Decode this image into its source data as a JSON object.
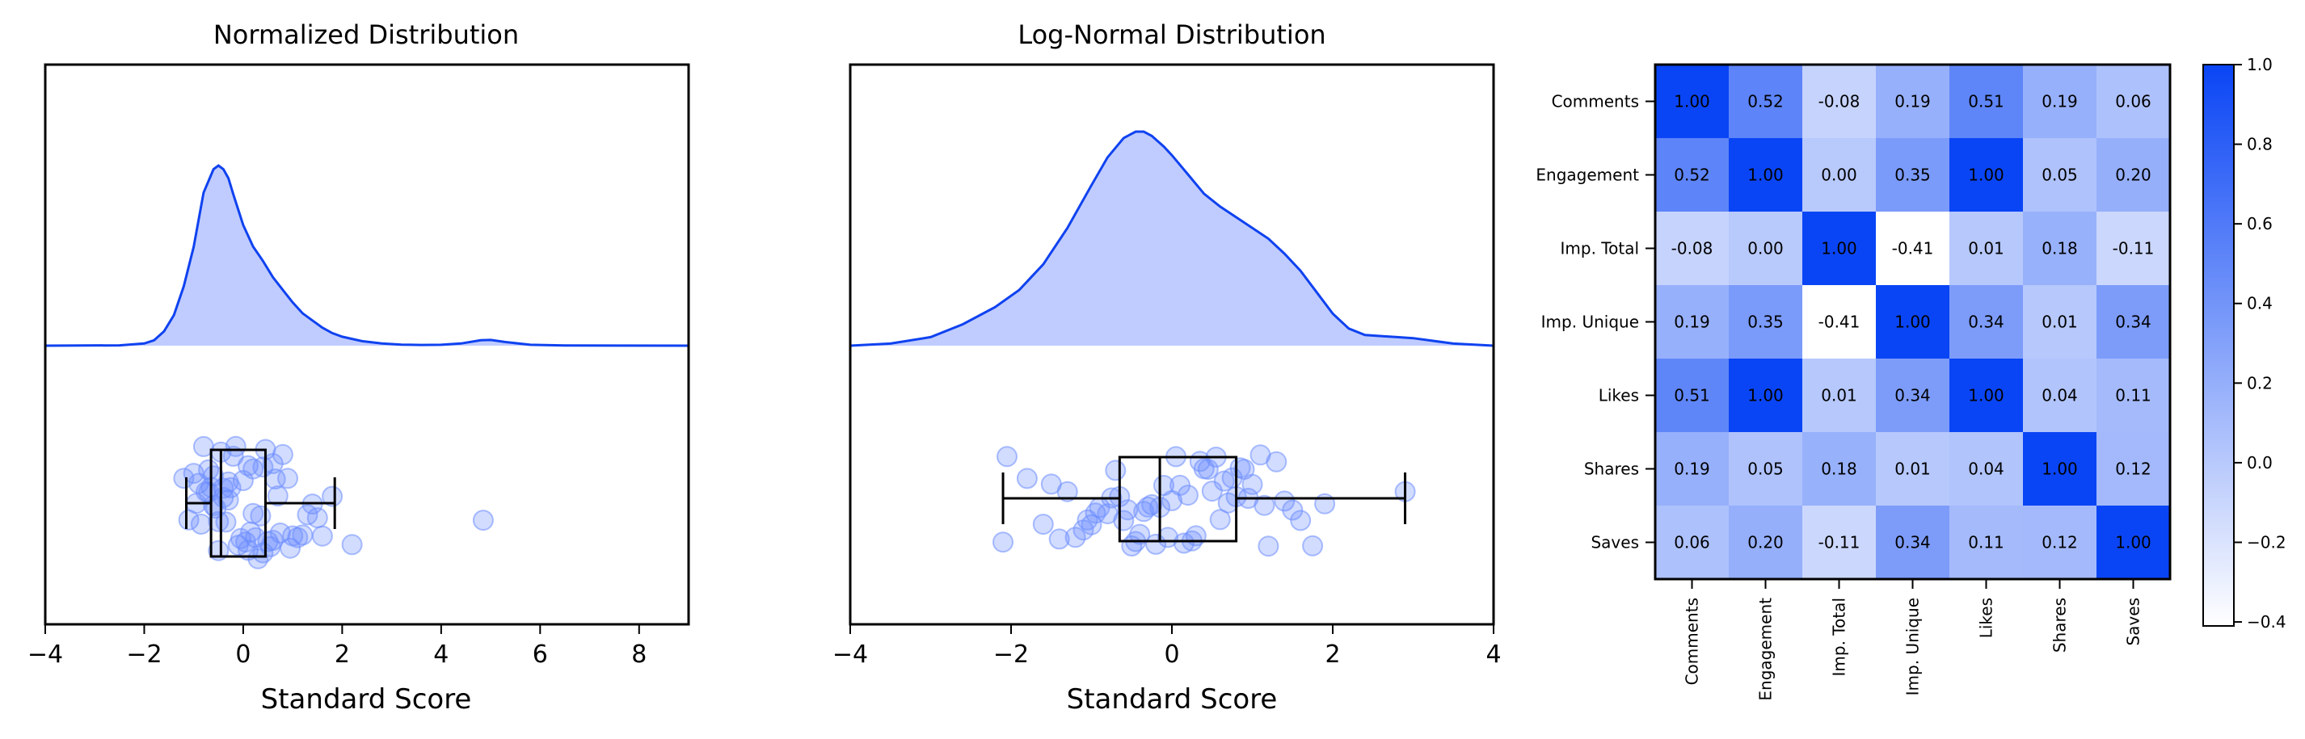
{
  "colors": {
    "accent": "#0f42f0",
    "fill": "#c0ccff",
    "point": "#6b8cff",
    "box": "#000000",
    "heat_low": "#ffffff",
    "heat_high": "#0a45f5"
  },
  "chart_data": [
    {
      "type": "raincloud",
      "title": "Normalized Distribution",
      "xlabel": "Standard Score",
      "xlim": [
        -4,
        9
      ],
      "xticks": [
        -4,
        -2,
        0,
        2,
        4,
        6,
        8
      ],
      "xtick_labels": [
        "−4",
        "−2",
        "0",
        "2",
        "4",
        "6",
        "8"
      ],
      "density": {
        "x": [
          -4,
          -2.5,
          -2,
          -1.8,
          -1.6,
          -1.4,
          -1.2,
          -1.0,
          -0.8,
          -0.6,
          -0.5,
          -0.4,
          -0.3,
          -0.2,
          0,
          0.2,
          0.4,
          0.6,
          0.8,
          1.0,
          1.2,
          1.4,
          1.6,
          1.8,
          2.0,
          2.4,
          2.8,
          3.2,
          3.6,
          4.0,
          4.4,
          4.8,
          5.0,
          5.3,
          5.8,
          6.5,
          9
        ],
        "y": [
          0,
          0.002,
          0.012,
          0.03,
          0.08,
          0.17,
          0.33,
          0.55,
          0.85,
          0.98,
          1.0,
          0.98,
          0.93,
          0.84,
          0.67,
          0.55,
          0.47,
          0.38,
          0.31,
          0.24,
          0.18,
          0.14,
          0.1,
          0.07,
          0.05,
          0.025,
          0.012,
          0.006,
          0.004,
          0.005,
          0.012,
          0.03,
          0.032,
          0.02,
          0.005,
          0.001,
          0
        ]
      },
      "box": {
        "whisker_low": -1.15,
        "q1": -0.65,
        "median": -0.45,
        "q3": 0.45,
        "whisker_high": 1.85
      },
      "points": [
        -0.5,
        0.4,
        -1.2,
        0.8,
        -0.7,
        1.2,
        0.1,
        -0.3,
        0.6,
        -0.9,
        1.5,
        -0.1,
        0.3,
        -0.6,
        0.9,
        -0.4,
        1.8,
        0.2,
        -1.0,
        0.5,
        -0.2,
        1.1,
        -0.8,
        0.0,
        0.7,
        -0.55,
        1.3,
        -0.35,
        0.15,
        -0.65,
        2.2,
        -0.15,
        0.45,
        -0.75,
        0.95,
        -0.45,
        0.25,
        -1.1,
        0.55,
        -0.25,
        1.0,
        -0.05,
        0.35,
        -0.85,
        0.65,
        -0.5,
        1.6,
        0.05,
        4.85,
        -0.3,
        0.75,
        -0.6,
        0.4,
        -0.95,
        0.2,
        -0.4,
        1.4,
        0.1,
        -0.7,
        0.6
      ]
    },
    {
      "type": "raincloud",
      "title": "Log-Normal Distribution",
      "xlabel": "Standard Score",
      "xlim": [
        -4,
        4
      ],
      "xticks": [
        -4,
        -2,
        0,
        2,
        4
      ],
      "xtick_labels": [
        "−4",
        "−2",
        "0",
        "2",
        "4"
      ],
      "density": {
        "x": [
          -4,
          -3.5,
          -3.0,
          -2.6,
          -2.2,
          -1.9,
          -1.6,
          -1.3,
          -1.0,
          -0.8,
          -0.6,
          -0.45,
          -0.35,
          -0.25,
          -0.1,
          0.0,
          0.2,
          0.4,
          0.6,
          0.8,
          1.0,
          1.2,
          1.4,
          1.6,
          1.8,
          2.0,
          2.2,
          2.4,
          2.6,
          2.8,
          3.0,
          3.2,
          3.5,
          4.0
        ],
        "y": [
          0,
          0.01,
          0.04,
          0.1,
          0.18,
          0.26,
          0.38,
          0.55,
          0.75,
          0.88,
          0.97,
          1.0,
          1.0,
          0.98,
          0.93,
          0.89,
          0.8,
          0.71,
          0.65,
          0.6,
          0.55,
          0.5,
          0.43,
          0.35,
          0.25,
          0.15,
          0.08,
          0.05,
          0.045,
          0.04,
          0.035,
          0.025,
          0.01,
          0
        ]
      },
      "box": {
        "whisker_low": -2.1,
        "q1": -0.65,
        "median": -0.15,
        "q3": 0.8,
        "whisker_high": 2.9
      },
      "points": [
        -2.1,
        -1.0,
        0.3,
        1.5,
        -0.4,
        0.9,
        -1.4,
        0.1,
        2.9,
        -0.7,
        0.6,
        -0.2,
        1.2,
        -1.8,
        0.4,
        -0.9,
        1.9,
        -0.3,
        0.8,
        -1.2,
        0.0,
        1.1,
        -0.6,
        0.5,
        -1.6,
        0.2,
        1.6,
        -0.5,
        0.7,
        -1.1,
        1.3,
        -0.1,
        0.35,
        -0.8,
        1.0,
        -2.05,
        0.15,
        -0.45,
        0.55,
        -1.3,
        0.95,
        -0.25,
        1.4,
        -0.65,
        0.25,
        -0.95,
        0.75,
        -0.15,
        0.45,
        -1.5,
        1.75,
        -0.35,
        0.05,
        -0.75,
        0.65,
        -0.05,
        1.15,
        -1.05,
        0.85,
        -0.55
      ]
    },
    {
      "type": "heatmap",
      "labels": [
        "Comments",
        "Engagement",
        "Imp. Total",
        "Imp. Unique",
        "Likes",
        "Shares",
        "Saves"
      ],
      "values": [
        [
          1.0,
          0.52,
          -0.08,
          0.19,
          0.51,
          0.19,
          0.06
        ],
        [
          0.52,
          1.0,
          0.0,
          0.35,
          1.0,
          0.05,
          0.2
        ],
        [
          -0.08,
          0.0,
          1.0,
          -0.41,
          0.01,
          0.18,
          -0.11
        ],
        [
          0.19,
          0.35,
          -0.41,
          1.0,
          0.34,
          0.01,
          0.34
        ],
        [
          0.51,
          1.0,
          0.01,
          0.34,
          1.0,
          0.04,
          0.11
        ],
        [
          0.19,
          0.05,
          0.18,
          0.01,
          0.04,
          1.0,
          0.12
        ],
        [
          0.06,
          0.2,
          -0.11,
          0.34,
          0.11,
          0.12,
          1.0
        ]
      ],
      "value_labels": [
        [
          "1.00",
          "0.52",
          "-0.08",
          "0.19",
          "0.51",
          "0.19",
          "0.06"
        ],
        [
          "0.52",
          "1.00",
          "0.00",
          "0.35",
          "1.00",
          "0.05",
          "0.20"
        ],
        [
          "-0.08",
          "0.00",
          "1.00",
          "-0.41",
          "0.01",
          "0.18",
          "-0.11"
        ],
        [
          "0.19",
          "0.35",
          "-0.41",
          "1.00",
          "0.34",
          "0.01",
          "0.34"
        ],
        [
          "0.51",
          "1.00",
          "0.01",
          "0.34",
          "1.00",
          "0.04",
          "0.11"
        ],
        [
          "0.19",
          "0.05",
          "0.18",
          "0.01",
          "0.04",
          "1.00",
          "0.12"
        ],
        [
          "0.06",
          "0.20",
          "-0.11",
          "0.34",
          "0.11",
          "0.12",
          "1.00"
        ]
      ],
      "vmin": -0.41,
      "vmax": 1.0,
      "colorbar_ticks": [
        1.0,
        0.8,
        0.6,
        0.4,
        0.2,
        0.0,
        -0.2,
        -0.4
      ],
      "colorbar_tick_labels": [
        "1.0",
        "0.8",
        "0.6",
        "0.4",
        "0.2",
        "0.0",
        "−0.2",
        "−0.4"
      ]
    }
  ]
}
